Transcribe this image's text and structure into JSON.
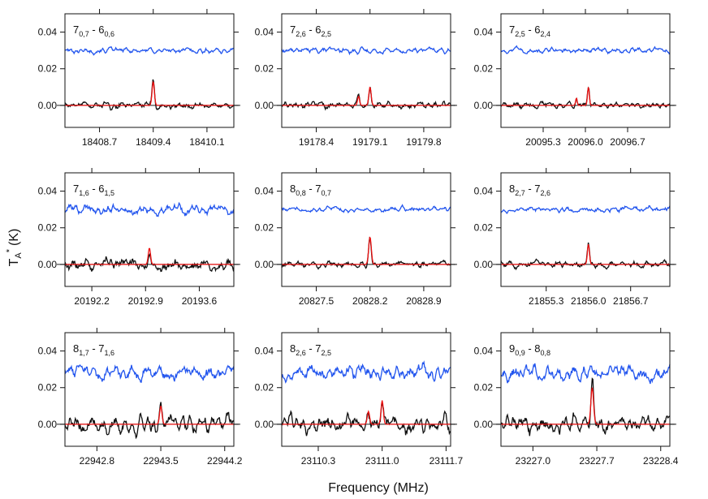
{
  "chart_data": {
    "type": "line",
    "xlabel": "Frequency (MHz)",
    "ylabel_main": "T",
    "ylabel_sub": "A",
    "ylabel_sup": "*",
    "ylabel_unit": "(K)",
    "ylim": [
      -0.012,
      0.05
    ],
    "yticks": [
      0.0,
      0.02,
      0.04
    ],
    "ytick_labels": [
      "0.00",
      "0.02",
      "0.04"
    ],
    "colors": {
      "offset_spectrum": "#2255ee",
      "observed_spectrum": "#111111",
      "fit": "#ee1111"
    },
    "panels": [
      {
        "transition": {
          "j": "7",
          "upper_sub": "0,7",
          "j2": "6",
          "lower_sub": "0,6"
        },
        "xlim": [
          18408.25,
          18410.45
        ],
        "xticks": [
          18408.7,
          18409.4,
          18410.1
        ],
        "xtick_labels": [
          "18408.7",
          "18409.4",
          "18410.1"
        ],
        "peaks": [
          {
            "x": 18409.4,
            "amp": 0.013,
            "width": 0.035
          }
        ],
        "blue_offset": 0.03,
        "noise": 0.0015
      },
      {
        "transition": {
          "j": "7",
          "upper_sub": "2,6",
          "j2": "6",
          "lower_sub": "2,5"
        },
        "xlim": [
          19177.95,
          19180.15
        ],
        "xticks": [
          19178.4,
          19179.1,
          19179.8
        ],
        "xtick_labels": [
          "19178.4",
          "19179.1",
          "19179.8"
        ],
        "peaks": [
          {
            "x": 19178.95,
            "amp": 0.005,
            "width": 0.03
          },
          {
            "x": 19179.1,
            "amp": 0.01,
            "width": 0.035
          }
        ],
        "blue_offset": 0.03,
        "noise": 0.0015
      },
      {
        "transition": {
          "j": "7",
          "upper_sub": "2,5",
          "j2": "6",
          "lower_sub": "2,4"
        },
        "xlim": [
          20094.6,
          20097.4
        ],
        "xticks": [
          20095.3,
          20096.0,
          20096.7
        ],
        "xtick_labels": [
          "20095.3",
          "20096.0",
          "20096.7"
        ],
        "peaks": [
          {
            "x": 20095.85,
            "amp": 0.004,
            "width": 0.03
          },
          {
            "x": 20096.05,
            "amp": 0.01,
            "width": 0.035
          }
        ],
        "blue_offset": 0.03,
        "noise": 0.0015
      },
      {
        "transition": {
          "j": "7",
          "upper_sub": "1,6",
          "j2": "6",
          "lower_sub": "1,5"
        },
        "xlim": [
          20191.85,
          20194.05
        ],
        "xticks": [
          20192.2,
          20192.9,
          20193.6
        ],
        "xtick_labels": [
          "20192.2",
          "20192.9",
          "20193.6"
        ],
        "peaks": [
          {
            "x": 20192.95,
            "amp": 0.009,
            "width": 0.035
          }
        ],
        "blue_offset": 0.03,
        "noise": 0.0028
      },
      {
        "transition": {
          "j": "8",
          "upper_sub": "0,8",
          "j2": "7",
          "lower_sub": "0,7"
        },
        "xlim": [
          20827.05,
          20829.25
        ],
        "xticks": [
          20827.5,
          20828.2,
          20828.9
        ],
        "xtick_labels": [
          "20827.5",
          "20828.2",
          "20828.9"
        ],
        "peaks": [
          {
            "x": 20828.2,
            "amp": 0.015,
            "width": 0.04
          }
        ],
        "blue_offset": 0.03,
        "noise": 0.0015
      },
      {
        "transition": {
          "j": "8",
          "upper_sub": "2,7",
          "j2": "7",
          "lower_sub": "2,6"
        },
        "xlim": [
          21854.55,
          21857.35
        ],
        "xticks": [
          21855.3,
          21856.0,
          21856.7
        ],
        "xtick_labels": [
          "21855.3",
          "21856.0",
          "21856.7"
        ],
        "peaks": [
          {
            "x": 21856.0,
            "amp": 0.011,
            "width": 0.04
          }
        ],
        "blue_offset": 0.03,
        "noise": 0.0015
      },
      {
        "transition": {
          "j": "8",
          "upper_sub": "1,7",
          "j2": "7",
          "lower_sub": "1,6"
        },
        "xlim": [
          22942.45,
          22944.3
        ],
        "xticks": [
          22942.8,
          22943.5,
          22944.2
        ],
        "xtick_labels": [
          "22942.8",
          "22943.5",
          "22944.2"
        ],
        "peaks": [
          {
            "x": 22943.5,
            "amp": 0.01,
            "width": 0.03
          }
        ],
        "blue_offset": 0.028,
        "noise": 0.004
      },
      {
        "transition": {
          "j": "8",
          "upper_sub": "2,6",
          "j2": "7",
          "lower_sub": "2,5"
        },
        "xlim": [
          23109.9,
          23111.75
        ],
        "xticks": [
          23110.3,
          23111.0,
          23111.7
        ],
        "xtick_labels": [
          "23110.3",
          "23111.0",
          "23111.7"
        ],
        "peaks": [
          {
            "x": 23110.85,
            "amp": 0.007,
            "width": 0.03
          },
          {
            "x": 23111.0,
            "amp": 0.013,
            "width": 0.03
          }
        ],
        "blue_offset": 0.028,
        "noise": 0.004
      },
      {
        "transition": {
          "j": "9",
          "upper_sub": "0,9",
          "j2": "8",
          "lower_sub": "0,8"
        },
        "xlim": [
          23226.65,
          23228.5
        ],
        "xticks": [
          23227.0,
          23227.7,
          23228.4
        ],
        "xtick_labels": [
          "23227.0",
          "23227.7",
          "23228.4"
        ],
        "peaks": [
          {
            "x": 23227.65,
            "amp": 0.02,
            "width": 0.035
          }
        ],
        "blue_offset": 0.028,
        "noise": 0.004
      }
    ]
  }
}
